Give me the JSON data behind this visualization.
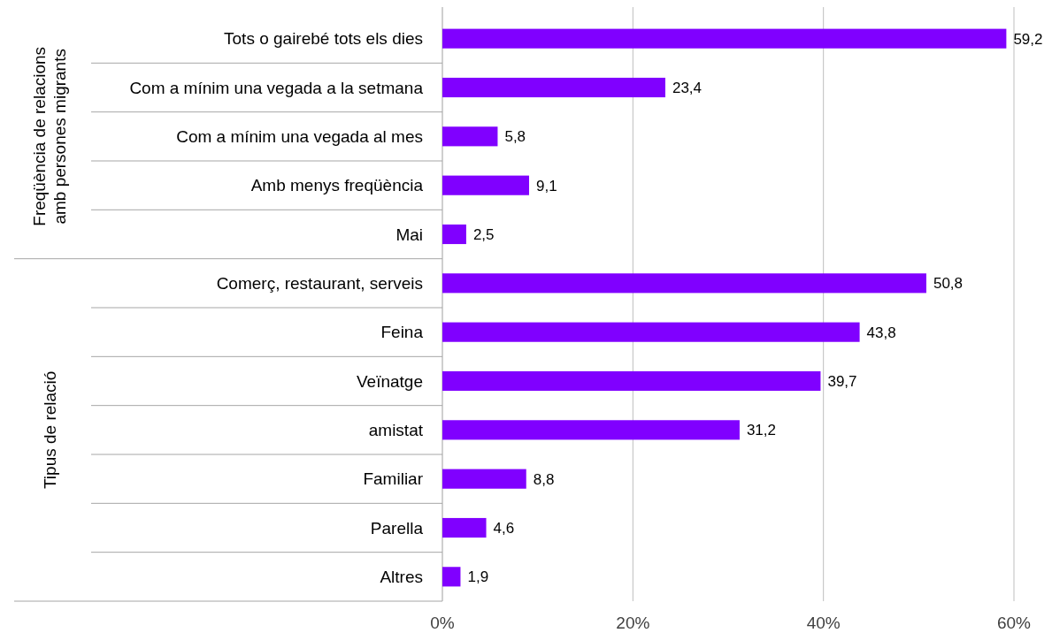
{
  "chart_data": {
    "type": "bar",
    "orientation": "horizontal",
    "categories": [
      "Tots o gairebé tots els dies",
      "Com a mínim una vegada a la setmana",
      "Com a mínim una vegada al mes",
      "Amb menys freqüència",
      "Mai",
      "Comerç, restaurant, serveis",
      "Feina",
      "Veïnatge",
      "amistat",
      "Familiar",
      "Parella",
      "Altres"
    ],
    "values": [
      59.2,
      23.4,
      5.8,
      9.1,
      2.5,
      50.8,
      43.8,
      39.7,
      31.2,
      8.8,
      4.6,
      1.9
    ],
    "value_labels": [
      "59,2",
      "23,4",
      "5,8",
      "9,1",
      "2,5",
      "50,8",
      "43,8",
      "39,7",
      "31,2",
      "8,8",
      "4,6",
      "1,9"
    ],
    "color": "#8000ff",
    "xlim": [
      0,
      60
    ],
    "xticks": [
      {
        "value": 0,
        "label": "0%"
      },
      {
        "value": 20,
        "label": "20%"
      },
      {
        "value": 40,
        "label": "40%"
      },
      {
        "value": 60,
        "label": "60%"
      }
    ],
    "grid": "x",
    "annotations": [
      "Freqüència de relacions\namb persones migrants",
      "Tipus de relació"
    ]
  }
}
